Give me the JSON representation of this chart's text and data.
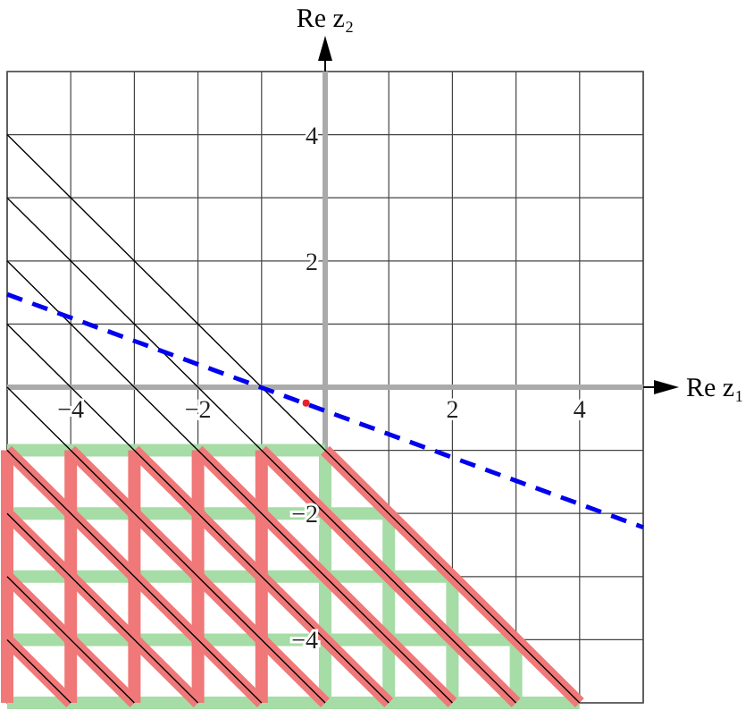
{
  "chart_data": {
    "type": "line",
    "xlabel": "Re z₁",
    "ylabel": "Re z₂",
    "xlim": [
      -5,
      5
    ],
    "ylim": [
      -5,
      5
    ],
    "xticks": [
      {
        "value": -5,
        "label": null
      },
      {
        "value": -4,
        "label": "−4"
      },
      {
        "value": -3,
        "label": null
      },
      {
        "value": -2,
        "label": "−2"
      },
      {
        "value": -1,
        "label": null
      },
      {
        "value": 0,
        "label": null
      },
      {
        "value": 1,
        "label": null
      },
      2,
      {
        "value": 3,
        "label": null
      },
      4,
      {
        "value": 5,
        "label": null
      }
    ],
    "yticks": [
      {
        "value": -5,
        "label": null
      },
      {
        "value": -4,
        "label": "−4"
      },
      {
        "value": -3,
        "label": null
      },
      {
        "value": -2,
        "label": "−2"
      },
      {
        "value": -1,
        "label": null
      },
      {
        "value": 0,
        "label": null
      },
      {
        "value": 1,
        "label": null
      },
      2,
      {
        "value": 3,
        "label": null
      },
      4,
      {
        "value": 5,
        "label": null
      }
    ],
    "grid": true,
    "series": [
      {
        "color": "#a6dca6",
        "x": [
          -5,
          0
        ],
        "values": [
          -1,
          -1
        ]
      },
      {
        "color": "#a6dca6",
        "x": [
          -5,
          1
        ],
        "values": [
          -2,
          -2
        ]
      },
      {
        "color": "#a6dca6",
        "x": [
          -5,
          2
        ],
        "values": [
          -3,
          -3
        ]
      },
      {
        "color": "#a6dca6",
        "x": [
          -5,
          3
        ],
        "values": [
          -4,
          -4
        ]
      },
      {
        "color": "#a6dca6",
        "x": [
          -5,
          4
        ],
        "values": [
          -5,
          -5
        ]
      },
      {
        "color": "#a6dca6",
        "x": [
          0,
          0
        ],
        "values": [
          -1,
          -5
        ]
      },
      {
        "color": "#a6dca6",
        "x": [
          1,
          1
        ],
        "values": [
          -2,
          -5
        ]
      },
      {
        "color": "#a6dca6",
        "x": [
          2,
          2
        ],
        "values": [
          -3,
          -5
        ]
      },
      {
        "color": "#a6dca6",
        "x": [
          3,
          3
        ],
        "values": [
          -4,
          -5
        ]
      },
      {
        "color": "#f07878",
        "x": [
          -5,
          -5
        ],
        "values": [
          -1,
          -5
        ]
      },
      {
        "color": "#f07878",
        "x": [
          -4,
          -4
        ],
        "values": [
          -1,
          -5
        ]
      },
      {
        "color": "#f07878",
        "x": [
          -3,
          -3
        ],
        "values": [
          -1,
          -5
        ]
      },
      {
        "color": "#f07878",
        "x": [
          -2,
          -2
        ],
        "values": [
          -1,
          -5
        ]
      },
      {
        "color": "#f07878",
        "x": [
          -1,
          -1
        ],
        "values": [
          -1,
          -5
        ]
      },
      {
        "color": "#f07878",
        "x": [
          0,
          4
        ],
        "values": [
          -1,
          -5
        ]
      },
      {
        "color": "#f07878",
        "x": [
          -1,
          3
        ],
        "values": [
          -1,
          -5
        ]
      },
      {
        "color": "#f07878",
        "x": [
          -2,
          2
        ],
        "values": [
          -1,
          -5
        ]
      },
      {
        "color": "#f07878",
        "x": [
          -3,
          1
        ],
        "values": [
          -1,
          -5
        ]
      },
      {
        "color": "#f07878",
        "x": [
          -4,
          0
        ],
        "values": [
          -1,
          -5
        ]
      },
      {
        "color": "#f07878",
        "x": [
          -5,
          -1
        ],
        "values": [
          -1,
          -5
        ]
      },
      {
        "color": "#f07878",
        "x": [
          -5,
          -2
        ],
        "values": [
          -2,
          -5
        ]
      },
      {
        "color": "#f07878",
        "x": [
          -5,
          -3
        ],
        "values": [
          -3,
          -5
        ]
      },
      {
        "color": "#f07878",
        "x": [
          -5,
          -4
        ],
        "values": [
          -4,
          -5
        ]
      },
      {
        "color": "#000000",
        "x": [
          -5,
          4
        ],
        "values": [
          4,
          -5
        ]
      },
      {
        "color": "#000000",
        "x": [
          -5,
          3
        ],
        "values": [
          3,
          -5
        ]
      },
      {
        "color": "#000000",
        "x": [
          -5,
          2
        ],
        "values": [
          2,
          -5
        ]
      },
      {
        "color": "#000000",
        "x": [
          -5,
          1
        ],
        "values": [
          1,
          -5
        ]
      },
      {
        "color": "#000000",
        "x": [
          -5,
          0
        ],
        "values": [
          0,
          -5
        ]
      },
      {
        "color": "#000000",
        "x": [
          -5,
          -1
        ],
        "values": [
          -1,
          -5
        ]
      },
      {
        "color": "#000000",
        "x": [
          -5,
          -2
        ],
        "values": [
          -2,
          -5
        ]
      },
      {
        "color": "#000000",
        "x": [
          -5,
          -3
        ],
        "values": [
          -3,
          -5
        ]
      },
      {
        "color": "#000000",
        "x": [
          -5,
          -4
        ],
        "values": [
          -4,
          -5
        ]
      },
      {
        "color": "#0000ee",
        "line_style": "dashed",
        "x": [
          -5,
          5
        ],
        "values": [
          1.47,
          -2.22
        ]
      },
      {
        "type": "scatter",
        "color": "#e8202a",
        "x": [
          -0.3
        ],
        "values": [
          -0.25
        ]
      }
    ]
  }
}
